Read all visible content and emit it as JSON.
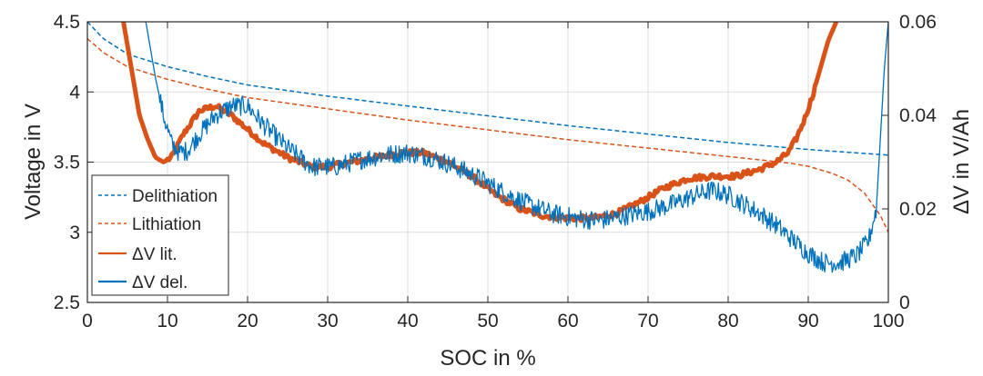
{
  "chart_data": {
    "type": "line",
    "xlabel": "SOC in %",
    "ylabel_left": "Voltage in V",
    "ylabel_right": "ΔV in V/Ah",
    "xlim": [
      0,
      100
    ],
    "ylim_left": [
      2.5,
      4.5
    ],
    "ylim_right": [
      0,
      0.06
    ],
    "x_ticks": [
      "0",
      "10",
      "20",
      "30",
      "40",
      "50",
      "60",
      "70",
      "80",
      "90",
      "100"
    ],
    "y_left_ticks": [
      "2.5",
      "3",
      "3.5",
      "4",
      "4.5"
    ],
    "y_right_ticks": [
      "0",
      "0.02",
      "0.04",
      "0.06"
    ],
    "grid": true,
    "legend_position": "bottom-left",
    "legend": [
      "Delithiation",
      "Lithiation",
      "ΔV lit.",
      "ΔV del."
    ],
    "series": [
      {
        "name": "Delithiation",
        "axis": "left",
        "style": "dashed",
        "color": "#0072BD",
        "x": [
          0,
          2,
          5,
          10,
          15,
          20,
          30,
          40,
          50,
          60,
          70,
          80,
          90,
          95,
          100
        ],
        "y": [
          4.5,
          4.38,
          4.27,
          4.18,
          4.11,
          4.05,
          3.97,
          3.9,
          3.83,
          3.76,
          3.7,
          3.64,
          3.59,
          3.57,
          3.55
        ]
      },
      {
        "name": "Lithiation",
        "axis": "left",
        "style": "dashed",
        "color": "#D95319",
        "x": [
          0,
          2,
          5,
          10,
          15,
          20,
          30,
          40,
          50,
          60,
          70,
          80,
          85,
          88,
          90,
          93,
          95,
          97,
          99,
          100
        ],
        "y": [
          4.38,
          4.28,
          4.18,
          4.09,
          4.02,
          3.96,
          3.88,
          3.8,
          3.73,
          3.66,
          3.6,
          3.54,
          3.51,
          3.49,
          3.47,
          3.42,
          3.37,
          3.28,
          3.12,
          3.0
        ]
      },
      {
        "name": "ΔV lit.",
        "axis": "right",
        "style": "solid-thick",
        "color": "#D95319",
        "x": [
          4.5,
          5.5,
          6.5,
          7.5,
          8.5,
          9.5,
          10.5,
          12,
          14,
          16,
          18,
          20,
          22,
          25,
          28,
          30,
          33,
          36,
          39,
          42,
          45,
          48,
          51,
          54,
          57,
          60,
          63,
          66,
          69,
          72,
          75,
          78,
          81,
          84,
          86,
          87.5,
          88.5,
          89.5,
          90.5,
          91.5,
          92.5,
          93.5
        ],
        "y": [
          0.06,
          0.05,
          0.04,
          0.035,
          0.031,
          0.03,
          0.031,
          0.036,
          0.041,
          0.042,
          0.04,
          0.037,
          0.034,
          0.031,
          0.029,
          0.029,
          0.03,
          0.031,
          0.032,
          0.032,
          0.03,
          0.027,
          0.023,
          0.02,
          0.0185,
          0.018,
          0.018,
          0.019,
          0.0215,
          0.0245,
          0.0265,
          0.027,
          0.027,
          0.0285,
          0.03,
          0.032,
          0.035,
          0.039,
          0.044,
          0.05,
          0.056,
          0.06
        ]
      },
      {
        "name": "ΔV del.",
        "axis": "right",
        "style": "solid-noisy",
        "color": "#0072BD",
        "x": [
          7.3,
          7.8,
          8.5,
          9.5,
          10.5,
          11.5,
          12.5,
          14,
          16,
          18,
          20,
          22,
          25,
          28,
          31,
          34,
          37,
          40,
          43,
          46,
          49,
          52,
          55,
          58,
          61,
          64,
          67,
          70,
          73,
          76,
          78,
          80,
          82,
          84,
          86,
          88,
          90,
          92,
          94,
          96,
          97.5,
          98.5,
          99,
          99.5,
          100
        ],
        "y": [
          0.06,
          0.055,
          0.048,
          0.04,
          0.034,
          0.032,
          0.0325,
          0.036,
          0.04,
          0.042,
          0.042,
          0.038,
          0.033,
          0.029,
          0.029,
          0.0305,
          0.0315,
          0.032,
          0.031,
          0.029,
          0.0265,
          0.0235,
          0.021,
          0.019,
          0.018,
          0.0175,
          0.0185,
          0.0195,
          0.021,
          0.023,
          0.024,
          0.023,
          0.021,
          0.019,
          0.0165,
          0.0135,
          0.0105,
          0.0085,
          0.0085,
          0.01,
          0.013,
          0.02,
          0.035,
          0.05,
          0.06
        ]
      }
    ]
  }
}
